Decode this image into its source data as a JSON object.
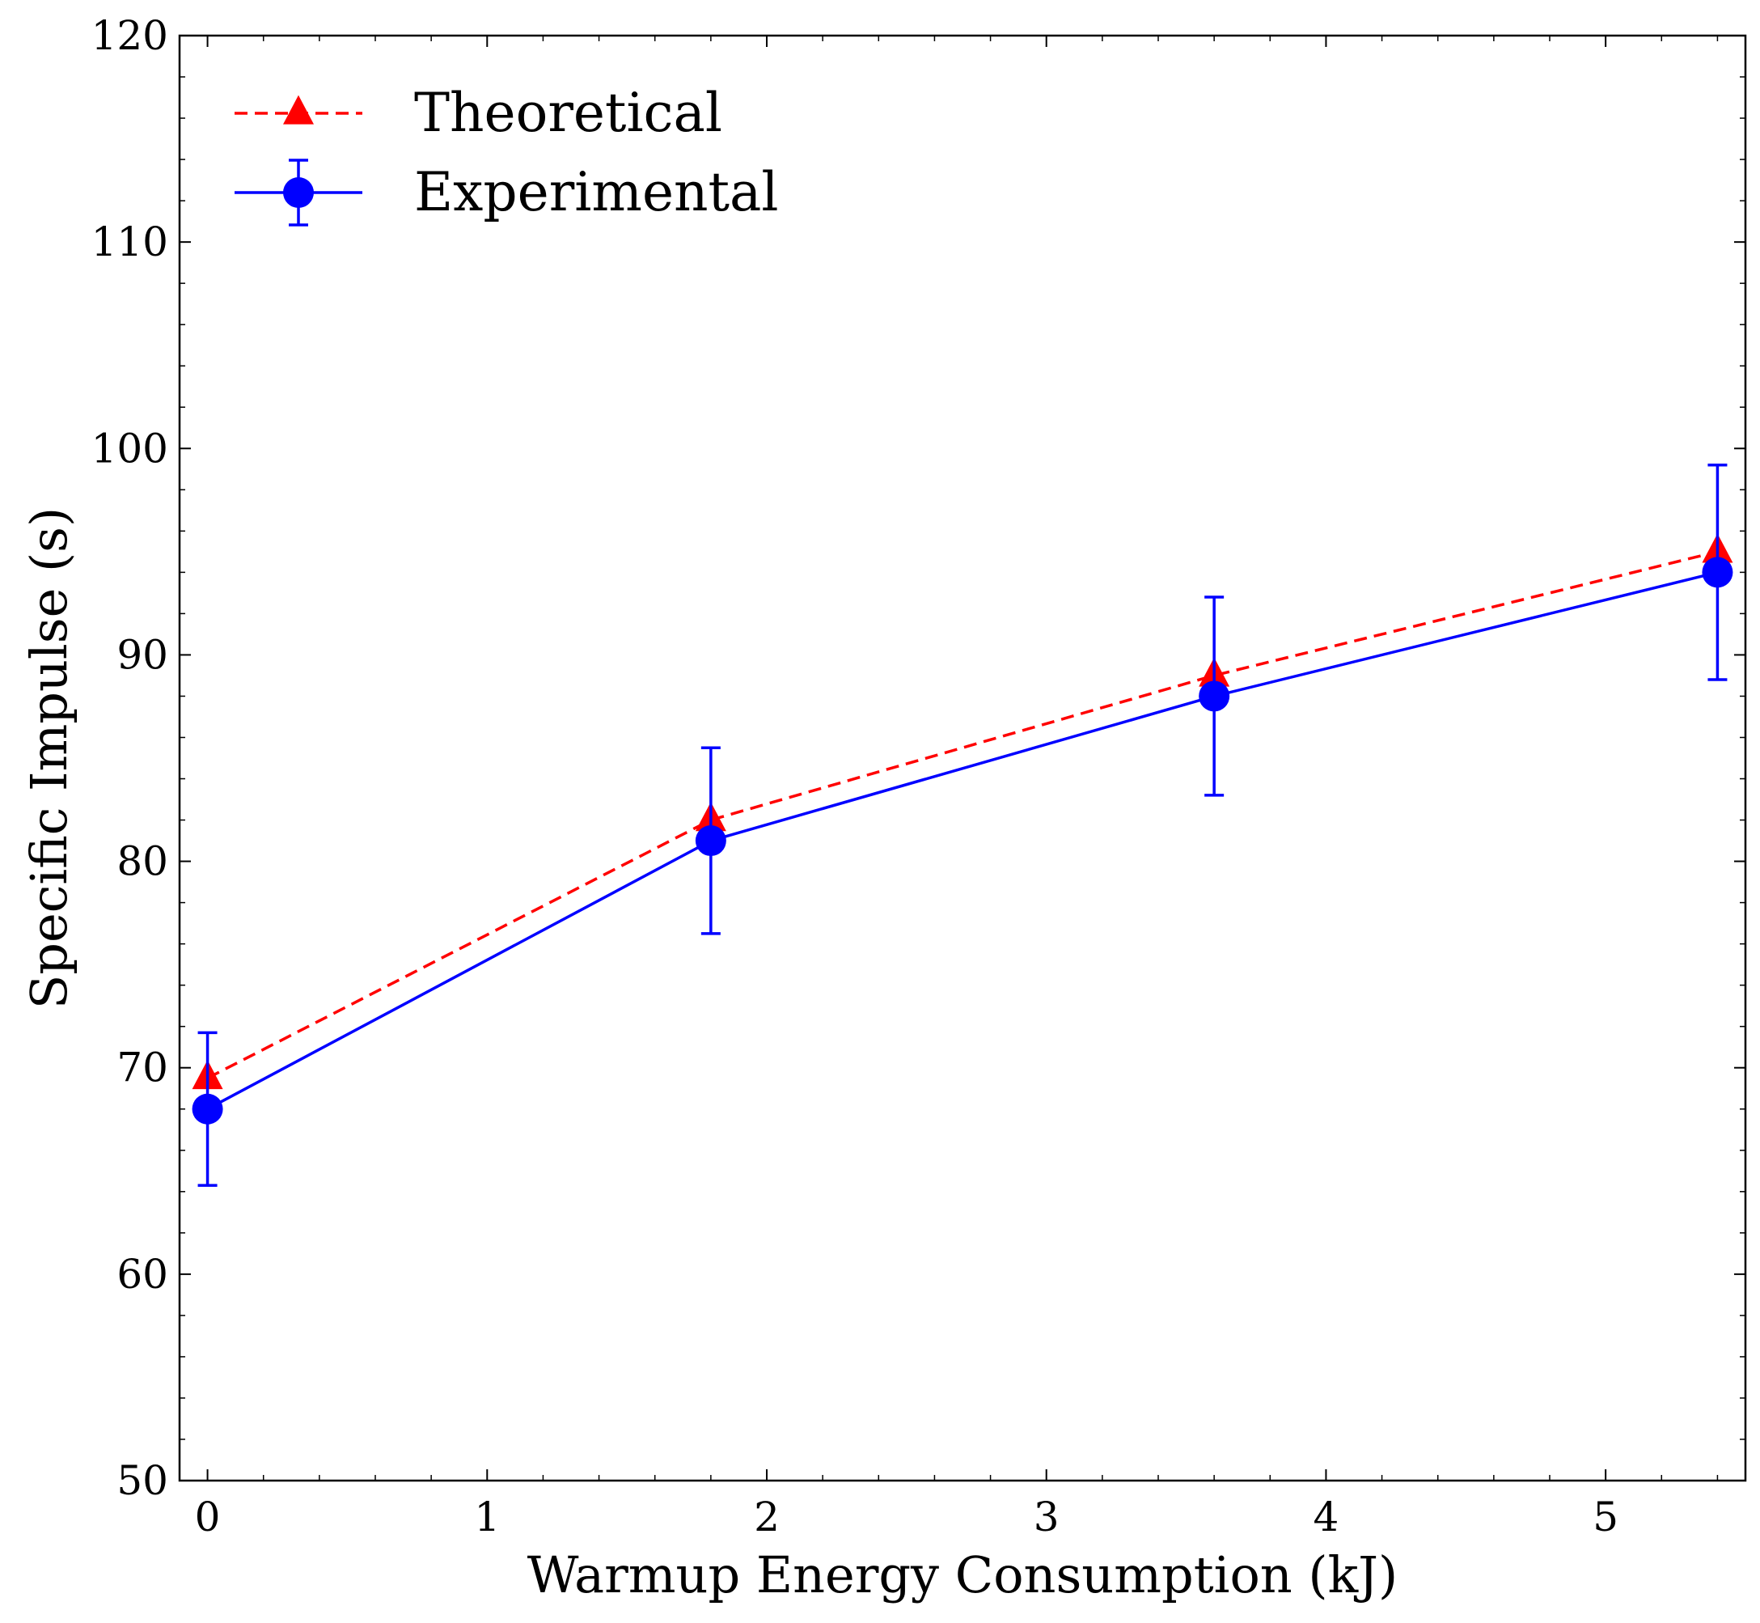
{
  "chart_data": {
    "type": "line",
    "title": "",
    "xlabel": "Warmup Energy Consumption (kJ)",
    "ylabel": "Specific Impulse (s)",
    "xlim": [
      -0.1,
      5.5
    ],
    "ylim": [
      50,
      120
    ],
    "xticks": [
      0,
      1,
      2,
      3,
      4,
      5
    ],
    "xtick_labels": [
      "0",
      "1",
      "2",
      "3",
      "4",
      "5"
    ],
    "yticks": [
      50,
      60,
      70,
      80,
      90,
      100,
      110,
      120
    ],
    "ytick_labels": [
      "50",
      "60",
      "70",
      "80",
      "90",
      "100",
      "110",
      "120"
    ],
    "x_minor_step": 0.2,
    "y_minor_step": 2,
    "grid": false,
    "legend_position": "top-left",
    "series": [
      {
        "name": "Theoretical",
        "color": "#ff0000",
        "line_style": "dashed",
        "marker": "triangle",
        "x": [
          0,
          1.8,
          3.6,
          5.4
        ],
        "y": [
          69.5,
          82.0,
          89.0,
          95.0
        ]
      },
      {
        "name": "Experimental",
        "color": "#0000ff",
        "line_style": "solid",
        "marker": "circle",
        "x": [
          0,
          1.8,
          3.6,
          5.4
        ],
        "y": [
          68.0,
          81.0,
          88.0,
          94.0
        ],
        "error": [
          3.7,
          4.5,
          4.8,
          5.2
        ]
      }
    ]
  }
}
